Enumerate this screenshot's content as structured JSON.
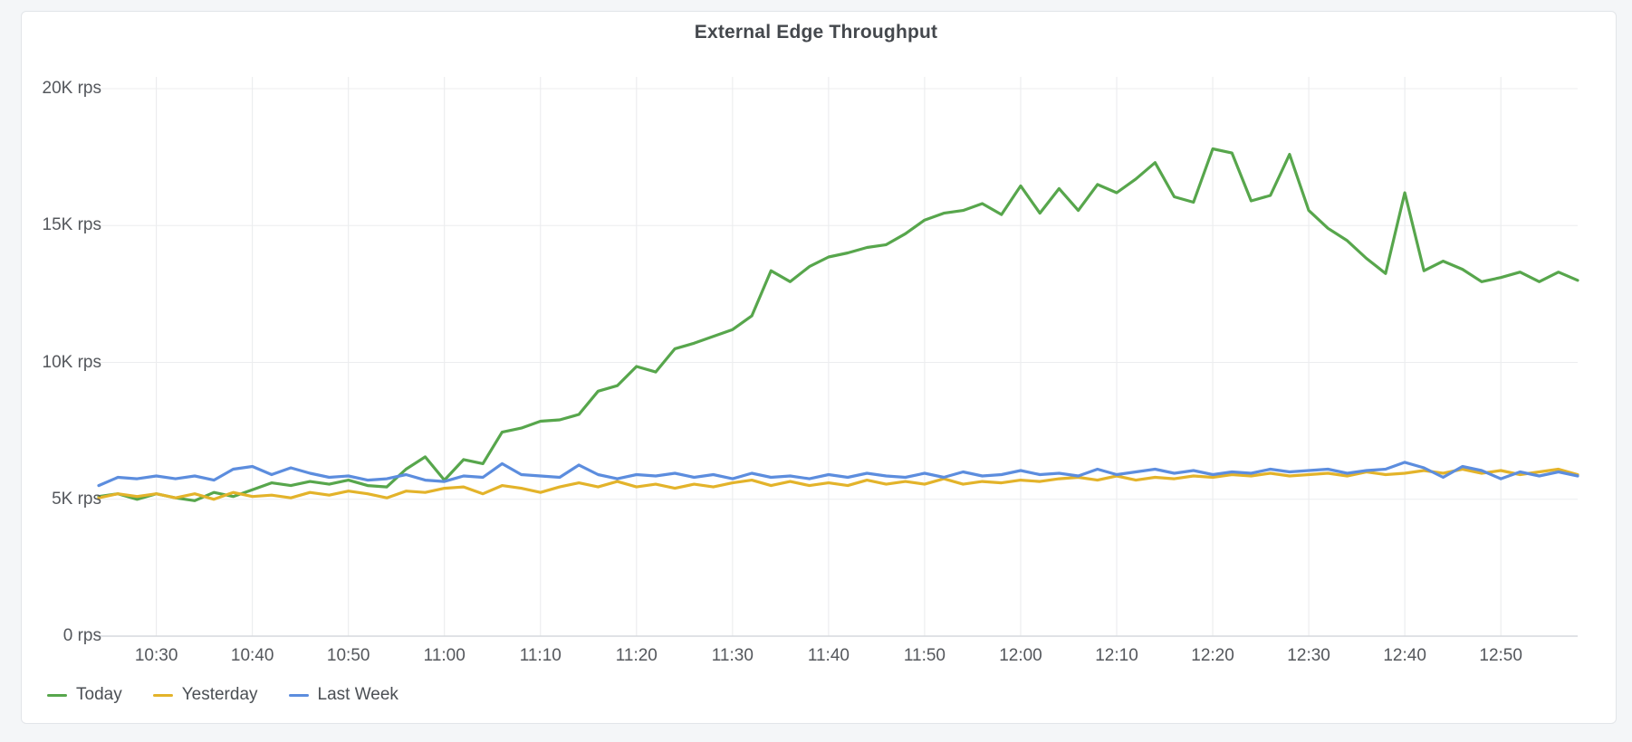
{
  "page": {
    "background": "#F4F6F8"
  },
  "panel": {
    "background": "#FFFFFF",
    "border_color": "#E2E5E9"
  },
  "chart_data": {
    "type": "line",
    "title": "External Edge Throughput",
    "xlabel": "",
    "ylabel": "rps",
    "grid": true,
    "legend_position": "bottom-left",
    "x_axis": {
      "tick_labels": [
        "10:30",
        "10:40",
        "10:50",
        "11:00",
        "11:10",
        "11:20",
        "11:30",
        "11:40",
        "11:50",
        "12:00",
        "12:10",
        "12:20",
        "12:30",
        "12:40",
        "12:50"
      ],
      "tick_minutes": [
        6,
        16,
        26,
        36,
        46,
        56,
        66,
        76,
        86,
        96,
        106,
        116,
        126,
        136,
        146
      ],
      "span_minutes": 154,
      "sample_interval_min": 2
    },
    "y_axis": {
      "tick_labels": [
        "0 rps",
        "5K rps",
        "10K rps",
        "15K rps",
        "20K rps"
      ],
      "tick_values_rps": [
        0,
        5000,
        10000,
        15000,
        20000
      ],
      "range_rps": [
        0,
        20000
      ]
    },
    "series": [
      {
        "name": "Today",
        "color": "#57A64C",
        "values_rps": [
          5100,
          5200,
          5000,
          5200,
          5050,
          4950,
          5250,
          5100,
          5350,
          5600,
          5500,
          5650,
          5550,
          5700,
          5500,
          5450,
          6100,
          6550,
          5700,
          6450,
          6300,
          7450,
          7600,
          7850,
          7900,
          8100,
          8950,
          9150,
          9850,
          9650,
          10500,
          10700,
          10950,
          11200,
          11700,
          13350,
          12950,
          13500,
          13850,
          14000,
          14200,
          14300,
          14700,
          15200,
          15450,
          15550,
          15800,
          15400,
          16450,
          15450,
          16350,
          15550,
          16500,
          16200,
          16700,
          17300,
          16050,
          15850,
          17800,
          17650,
          15900,
          16100,
          17600,
          15550,
          14900,
          14450,
          13800,
          13250,
          16200,
          13350,
          13700,
          13400,
          12950,
          13100,
          13300,
          12950,
          13300,
          13000
        ]
      },
      {
        "name": "Yesterday",
        "color": "#E3B32A",
        "values_rps": [
          5050,
          5200,
          5100,
          5200,
          5050,
          5200,
          5000,
          5250,
          5100,
          5150,
          5050,
          5250,
          5150,
          5300,
          5200,
          5050,
          5300,
          5250,
          5400,
          5450,
          5200,
          5500,
          5400,
          5250,
          5450,
          5600,
          5450,
          5650,
          5450,
          5550,
          5400,
          5550,
          5450,
          5600,
          5700,
          5500,
          5650,
          5500,
          5600,
          5500,
          5700,
          5550,
          5650,
          5550,
          5750,
          5550,
          5650,
          5600,
          5700,
          5650,
          5750,
          5800,
          5700,
          5850,
          5700,
          5800,
          5750,
          5850,
          5800,
          5900,
          5850,
          5950,
          5850,
          5900,
          5950,
          5850,
          6000,
          5900,
          5950,
          6050,
          5950,
          6100,
          5950,
          6050,
          5900,
          6000,
          6100,
          5900
        ]
      },
      {
        "name": "Last Week",
        "color": "#5C8DDE",
        "values_rps": [
          5500,
          5800,
          5750,
          5850,
          5750,
          5850,
          5700,
          6100,
          6200,
          5900,
          6150,
          5950,
          5800,
          5850,
          5700,
          5750,
          5900,
          5700,
          5650,
          5850,
          5800,
          6300,
          5900,
          5850,
          5800,
          6250,
          5900,
          5750,
          5900,
          5850,
          5950,
          5800,
          5900,
          5750,
          5950,
          5800,
          5850,
          5750,
          5900,
          5800,
          5950,
          5850,
          5800,
          5950,
          5800,
          6000,
          5850,
          5900,
          6050,
          5900,
          5950,
          5850,
          6100,
          5900,
          6000,
          6100,
          5950,
          6050,
          5900,
          6000,
          5950,
          6100,
          6000,
          6050,
          6100,
          5950,
          6050,
          6100,
          6350,
          6150,
          5800,
          6200,
          6050,
          5750,
          6000,
          5850,
          6000,
          5850
        ]
      }
    ]
  }
}
